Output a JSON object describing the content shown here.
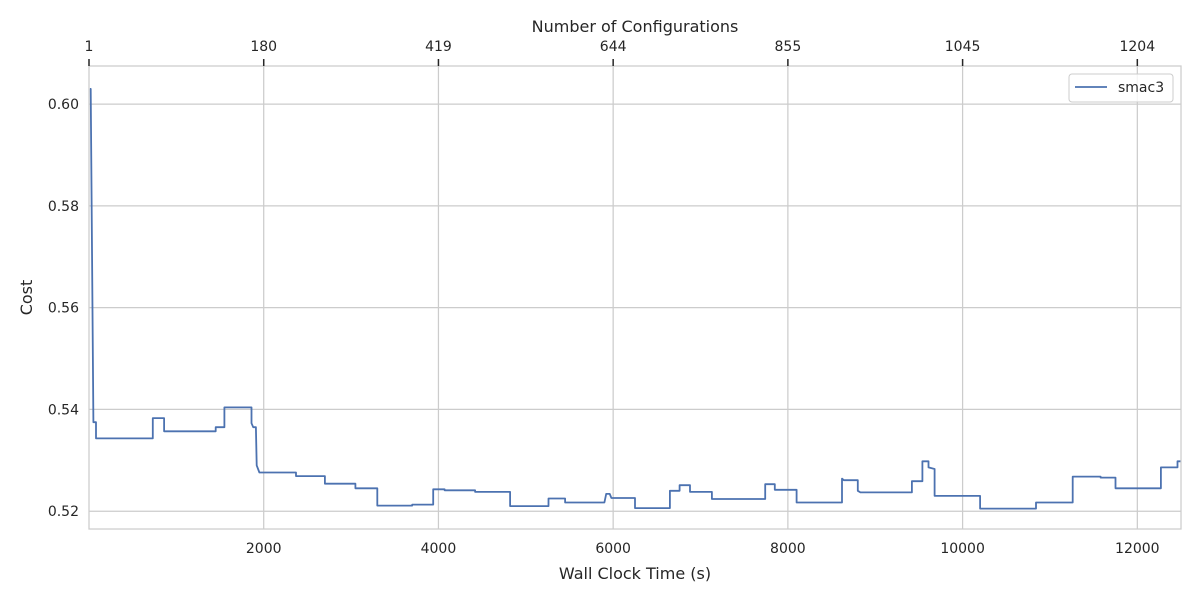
{
  "chart_data": {
    "type": "line",
    "title": "",
    "xlabel": "Wall Clock Time (s)",
    "ylabel": "Cost",
    "top_xlabel": "Number of Configurations",
    "xlim": [
      0,
      12500
    ],
    "ylim": [
      0.5165,
      0.6075
    ],
    "x_ticks": [
      2000,
      4000,
      6000,
      8000,
      10000,
      12000
    ],
    "x_tick_labels": [
      "2000",
      "4000",
      "6000",
      "8000",
      "10000",
      "12000"
    ],
    "y_ticks": [
      0.52,
      0.54,
      0.56,
      0.58,
      0.6
    ],
    "y_tick_labels": [
      "0.52",
      "0.54",
      "0.56",
      "0.58",
      "0.60"
    ],
    "top_ticks": [
      0,
      2000,
      4000,
      6000,
      8000,
      10000,
      12000
    ],
    "top_tick_labels": [
      "1",
      "180",
      "419",
      "644",
      "855",
      "1045",
      "1204"
    ],
    "grid": true,
    "legend_position": "top-right",
    "series": [
      {
        "name": "smac3",
        "color": "#4c72b0",
        "points": [
          [
            10,
            0.603
          ],
          [
            20,
            0.603
          ],
          [
            50,
            0.5375
          ],
          [
            80,
            0.5375
          ],
          [
            80,
            0.5343
          ],
          [
            730,
            0.5343
          ],
          [
            730,
            0.5383
          ],
          [
            860,
            0.5383
          ],
          [
            860,
            0.5357
          ],
          [
            1450,
            0.5357
          ],
          [
            1450,
            0.5365
          ],
          [
            1550,
            0.5365
          ],
          [
            1550,
            0.5404
          ],
          [
            1860,
            0.5404
          ],
          [
            1860,
            0.5373
          ],
          [
            1880,
            0.5365
          ],
          [
            1910,
            0.5365
          ],
          [
            1920,
            0.529
          ],
          [
            1950,
            0.5276
          ],
          [
            2370,
            0.5276
          ],
          [
            2370,
            0.5269
          ],
          [
            2700,
            0.5269
          ],
          [
            2700,
            0.5254
          ],
          [
            3050,
            0.5254
          ],
          [
            3050,
            0.5245
          ],
          [
            3300,
            0.5245
          ],
          [
            3300,
            0.5211
          ],
          [
            3700,
            0.5211
          ],
          [
            3700,
            0.5213
          ],
          [
            3940,
            0.5213
          ],
          [
            3940,
            0.5243
          ],
          [
            4070,
            0.5243
          ],
          [
            4070,
            0.5241
          ],
          [
            4420,
            0.5241
          ],
          [
            4420,
            0.5238
          ],
          [
            4820,
            0.5238
          ],
          [
            4820,
            0.521
          ],
          [
            5260,
            0.521
          ],
          [
            5260,
            0.5225
          ],
          [
            5450,
            0.5225
          ],
          [
            5450,
            0.5217
          ],
          [
            5900,
            0.5217
          ],
          [
            5920,
            0.5234
          ],
          [
            5960,
            0.5234
          ],
          [
            5980,
            0.5226
          ],
          [
            6250,
            0.5226
          ],
          [
            6250,
            0.5206
          ],
          [
            6650,
            0.5206
          ],
          [
            6650,
            0.524
          ],
          [
            6760,
            0.524
          ],
          [
            6760,
            0.5251
          ],
          [
            6880,
            0.5251
          ],
          [
            6880,
            0.5238
          ],
          [
            7130,
            0.5238
          ],
          [
            7130,
            0.5224
          ],
          [
            7740,
            0.5224
          ],
          [
            7740,
            0.5253
          ],
          [
            7850,
            0.5253
          ],
          [
            7850,
            0.5242
          ],
          [
            8100,
            0.5242
          ],
          [
            8100,
            0.5217
          ],
          [
            8620,
            0.5217
          ],
          [
            8620,
            0.5264
          ],
          [
            8640,
            0.5261
          ],
          [
            8800,
            0.5261
          ],
          [
            8800,
            0.524
          ],
          [
            8830,
            0.5237
          ],
          [
            9420,
            0.5237
          ],
          [
            9420,
            0.5259
          ],
          [
            9540,
            0.5259
          ],
          [
            9540,
            0.5298
          ],
          [
            9610,
            0.5298
          ],
          [
            9610,
            0.5286
          ],
          [
            9680,
            0.5283
          ],
          [
            9680,
            0.523
          ],
          [
            10200,
            0.523
          ],
          [
            10200,
            0.5205
          ],
          [
            10840,
            0.5205
          ],
          [
            10840,
            0.5217
          ],
          [
            11260,
            0.5217
          ],
          [
            11260,
            0.5268
          ],
          [
            11580,
            0.5268
          ],
          [
            11580,
            0.5266
          ],
          [
            11750,
            0.5266
          ],
          [
            11750,
            0.5245
          ],
          [
            12270,
            0.5245
          ],
          [
            12270,
            0.5286
          ],
          [
            12460,
            0.5286
          ],
          [
            12460,
            0.5298
          ],
          [
            12500,
            0.5298
          ]
        ]
      }
    ]
  }
}
